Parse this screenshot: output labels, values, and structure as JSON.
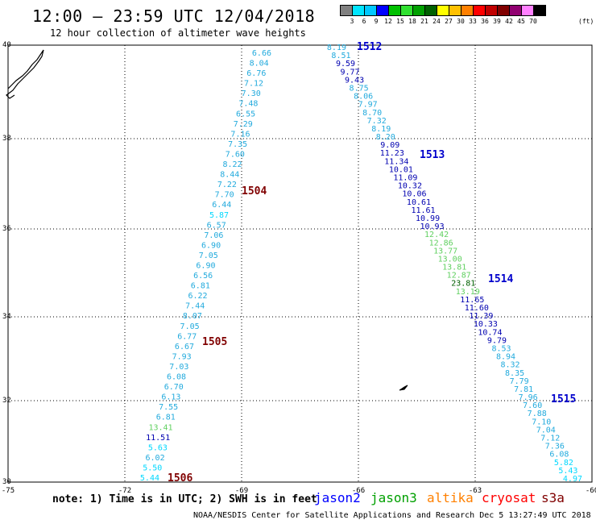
{
  "header": {
    "title": "12:00 – 23:59 UTC 12/04/2018",
    "subtitle": "12 hour collection of altimeter wave heights"
  },
  "color_scale": {
    "colors": [
      "#808080",
      "#00e5ff",
      "#00c8ff",
      "#0000ff",
      "#00c000",
      "#30e030",
      "#00a000",
      "#006000",
      "#ffff00",
      "#ffc000",
      "#ff8000",
      "#ff0000",
      "#c00000",
      "#800000",
      "#900070",
      "#ff80ff",
      "#000000"
    ],
    "labels": [
      "3",
      "6",
      "9",
      "12",
      "15",
      "18",
      "21",
      "24",
      "27",
      "30",
      "33",
      "36",
      "39",
      "42",
      "45",
      "70"
    ],
    "unit": "(ft)"
  },
  "axes": {
    "lon_labels": [
      "-75",
      "-72",
      "-69",
      "-66",
      "-63",
      "-60"
    ],
    "lat_labels": [
      "40",
      "38",
      "36",
      "34",
      "32",
      "30"
    ]
  },
  "passes": [
    {
      "id": "1512",
      "color": "#0000cc"
    },
    {
      "id": "1513",
      "color": "#0000cc"
    },
    {
      "id": "1514",
      "color": "#0000cc"
    },
    {
      "id": "1515",
      "color": "#0000cc"
    },
    {
      "id": "1504",
      "color": "#800000"
    },
    {
      "id": "1505",
      "color": "#800000"
    },
    {
      "id": "1506",
      "color": "#800000"
    }
  ],
  "track_west": {
    "labels": [
      "6.66",
      "8.04",
      "6.76",
      "7.12",
      "7.30",
      "7.48",
      "6.55",
      "7.29",
      "7.16",
      "7.35",
      "7.60",
      "8.22",
      "8.44",
      "7.22",
      "7.70",
      "6.44",
      "5.87",
      "6.57",
      "7.06",
      "6.90",
      "7.05",
      "6.90",
      "6.56",
      "6.81",
      "6.22",
      "7.44",
      "8.07",
      "7.05",
      "6.77",
      "6.67",
      "7.93",
      "7.03",
      "6.08",
      "6.70",
      "6.13",
      "7.55",
      "6.81",
      "13.41",
      "11.51",
      "5.63",
      "6.02",
      "5.50",
      "5.44"
    ]
  },
  "track_east": {
    "labels": [
      "8.19",
      "8.51",
      "9.59",
      "9.77",
      "9.43",
      "8.75",
      "8.06",
      "7.97",
      "8.70",
      "7.32",
      "8.19",
      "8.20",
      "9.09",
      "11.23",
      "11.34",
      "10.01",
      "11.09",
      "10.32",
      "10.06",
      "10.61",
      "11.61",
      "10.99",
      "10.93",
      "12.42",
      "12.86",
      "13.77",
      "13.00",
      "13.81",
      "12.87",
      "23.81",
      "13.19",
      "11.65",
      "11.60",
      "11.39",
      "10.33",
      "10.74",
      "9.79",
      "8.53",
      "8.94",
      "8.32",
      "8.35",
      "7.79",
      "7.81",
      "7.96",
      "7.60",
      "7.88",
      "7.10",
      "7.04",
      "7.12",
      "7.36",
      "6.08",
      "5.82",
      "5.43",
      "4.97"
    ]
  },
  "note": "note: 1) Time is in UTC; 2) SWH is in feet",
  "legend": [
    {
      "name": "jason2",
      "color": "#0000ff"
    },
    {
      "name": "jason3",
      "color": "#00a000"
    },
    {
      "name": "altika",
      "color": "#ff8000"
    },
    {
      "name": "cryosat",
      "color": "#ff0000"
    },
    {
      "name": "s3a",
      "color": "#800000"
    }
  ],
  "credit": "NOAA/NESDIS Center for Satellite Applications and Research   Dec  5 13:27:49 UTC 2018"
}
